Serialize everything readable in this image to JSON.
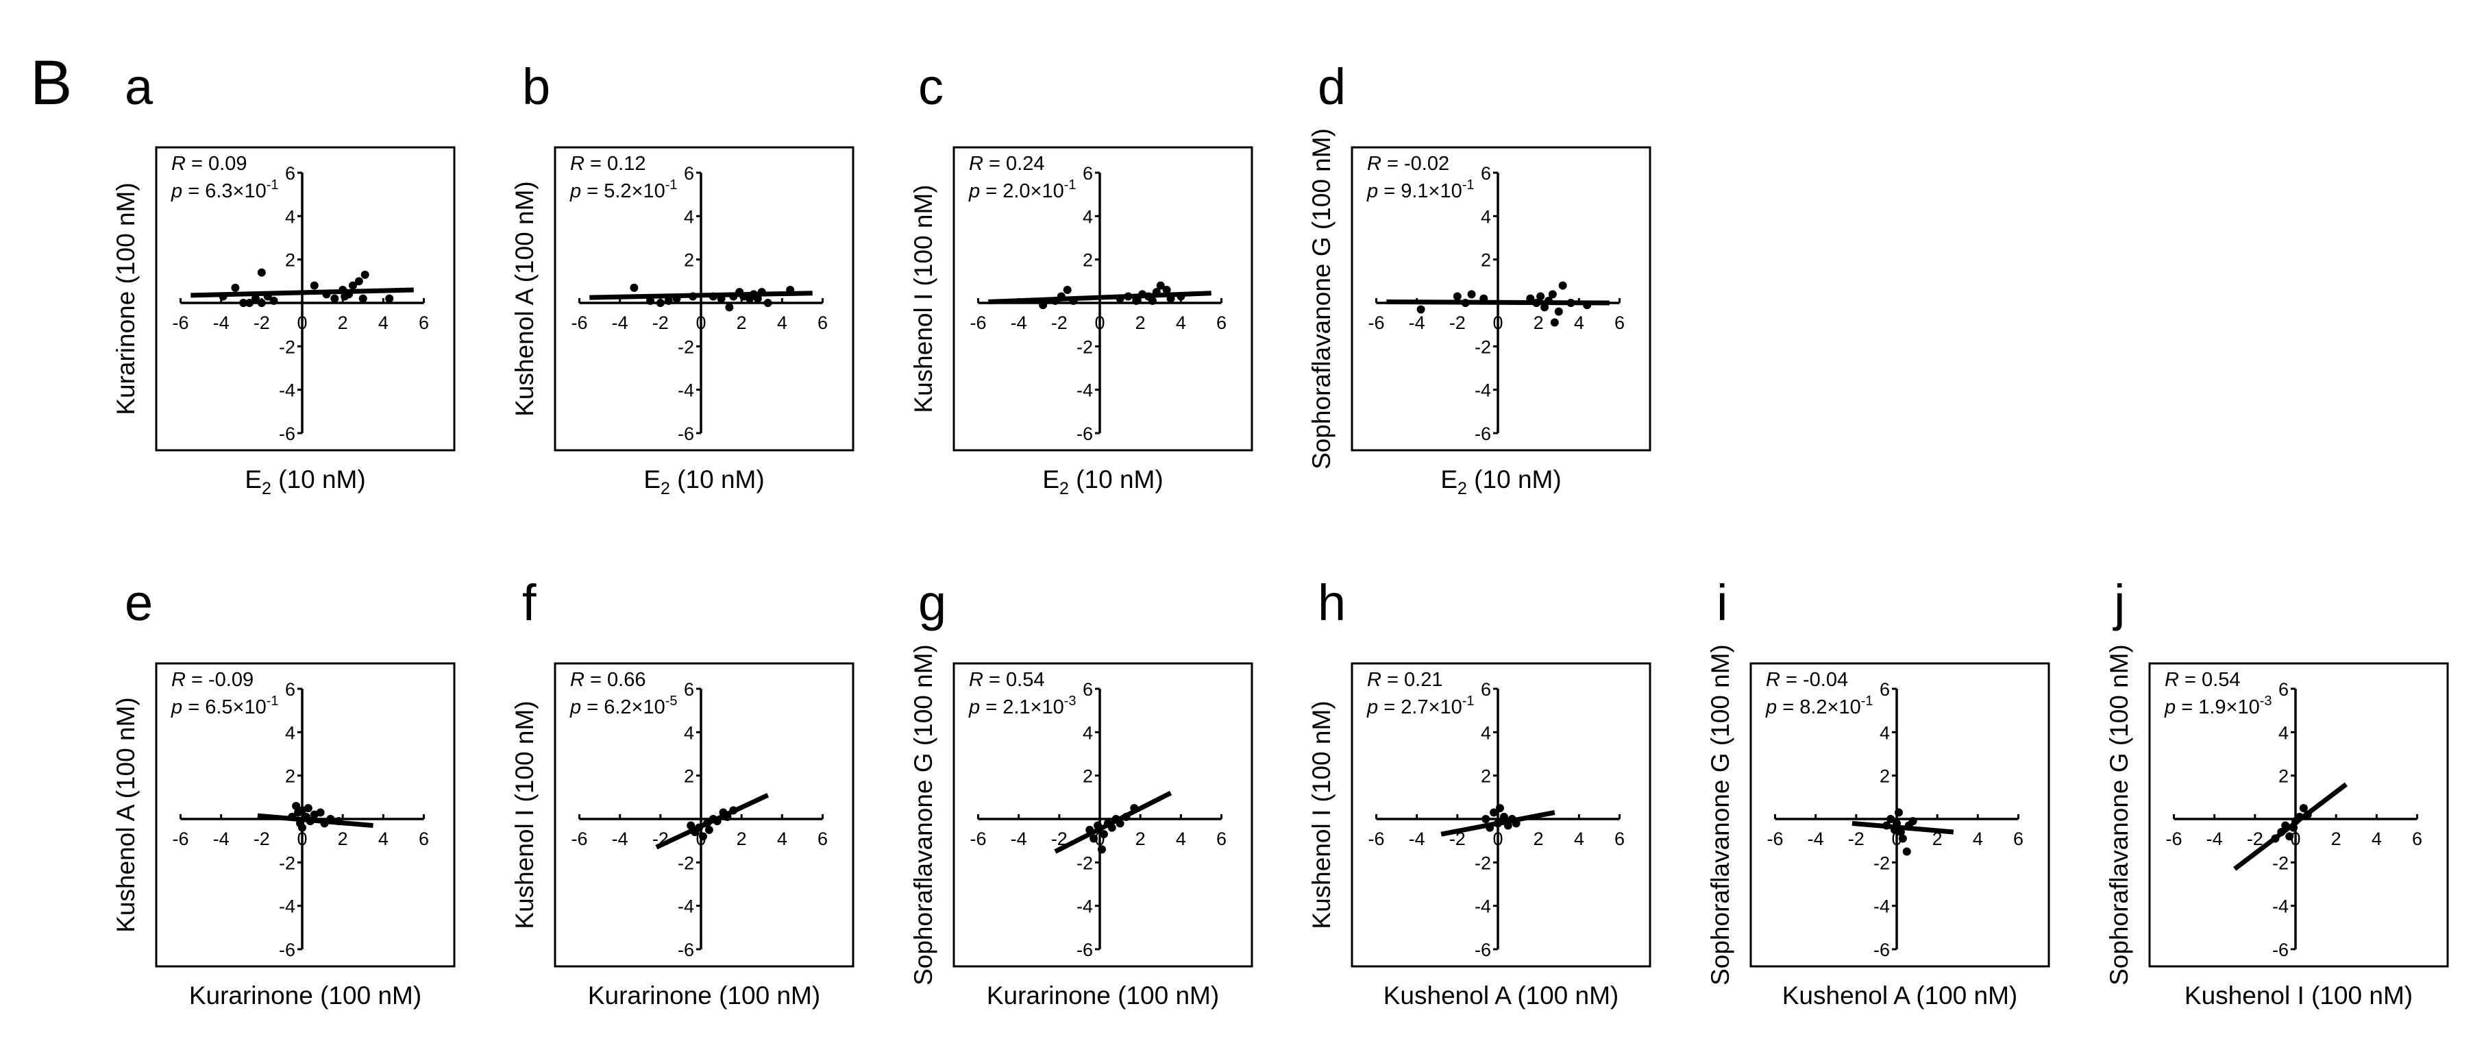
{
  "figure_label": "B",
  "tick_values": [
    -6,
    -4,
    -2,
    0,
    2,
    4,
    6
  ],
  "chart_data": [
    {
      "type": "scatter",
      "panel": "a",
      "xlabel_main": "E",
      "xlabel_sub": "2",
      "xlabel_rest": " (10 nM)",
      "ylabel": "Kurarinone (100 nM)",
      "xlim": [
        -6,
        6
      ],
      "ylim": [
        -6,
        6
      ],
      "R": "0.09",
      "p_mantissa": "6.3",
      "p_exp": "-1",
      "fit": {
        "x": [
          -5.5,
          5.5
        ],
        "y": [
          0.35,
          0.6
        ]
      },
      "points": [
        [
          -3.9,
          0.3
        ],
        [
          -3.3,
          0.7
        ],
        [
          -2.9,
          0.0
        ],
        [
          -2.6,
          0.0
        ],
        [
          -2.3,
          0.2
        ],
        [
          -2.0,
          1.4
        ],
        [
          -2.0,
          0.0
        ],
        [
          -1.7,
          0.3
        ],
        [
          -1.4,
          0.1
        ],
        [
          0.6,
          0.8
        ],
        [
          1.2,
          0.4
        ],
        [
          1.6,
          0.2
        ],
        [
          2.0,
          0.6
        ],
        [
          2.1,
          0.3
        ],
        [
          2.3,
          0.4
        ],
        [
          2.5,
          0.8
        ],
        [
          2.8,
          1.0
        ],
        [
          3.0,
          0.2
        ],
        [
          3.1,
          1.3
        ],
        [
          4.3,
          0.2
        ]
      ]
    },
    {
      "type": "scatter",
      "panel": "b",
      "xlabel_main": "E",
      "xlabel_sub": "2",
      "xlabel_rest": " (10 nM)",
      "ylabel": "Kushenol A (100 nM)",
      "xlim": [
        -6,
        6
      ],
      "ylim": [
        -6,
        6
      ],
      "R": "0.12",
      "p_mantissa": "5.2",
      "p_exp": "-1",
      "fit": {
        "x": [
          -5.5,
          5.5
        ],
        "y": [
          0.25,
          0.45
        ]
      },
      "points": [
        [
          -3.3,
          0.7
        ],
        [
          -2.5,
          0.1
        ],
        [
          -2.0,
          0.0
        ],
        [
          -1.6,
          0.1
        ],
        [
          -1.2,
          0.2
        ],
        [
          -0.4,
          0.3
        ],
        [
          0.6,
          0.3
        ],
        [
          1.0,
          0.2
        ],
        [
          1.4,
          -0.2
        ],
        [
          1.6,
          0.3
        ],
        [
          1.9,
          0.5
        ],
        [
          2.1,
          0.3
        ],
        [
          2.4,
          0.2
        ],
        [
          2.6,
          0.4
        ],
        [
          2.8,
          0.2
        ],
        [
          3.0,
          0.5
        ],
        [
          3.3,
          0.0
        ],
        [
          4.4,
          0.6
        ]
      ]
    },
    {
      "type": "scatter",
      "panel": "c",
      "xlabel_main": "E",
      "xlabel_sub": "2",
      "xlabel_rest": " (10 nM)",
      "ylabel": "Kushenol I (100 nM)",
      "xlim": [
        -6,
        6
      ],
      "ylim": [
        -6,
        6
      ],
      "R": "0.24",
      "p_mantissa": "2.0",
      "p_exp": "-1",
      "fit": {
        "x": [
          -5.5,
          5.5
        ],
        "y": [
          0.05,
          0.45
        ]
      },
      "points": [
        [
          -2.8,
          -0.1
        ],
        [
          -2.2,
          0.1
        ],
        [
          -1.9,
          0.3
        ],
        [
          -1.6,
          0.6
        ],
        [
          -1.3,
          0.1
        ],
        [
          1.0,
          0.2
        ],
        [
          1.4,
          0.3
        ],
        [
          1.8,
          0.1
        ],
        [
          2.1,
          0.4
        ],
        [
          2.4,
          0.3
        ],
        [
          2.6,
          0.1
        ],
        [
          2.8,
          0.5
        ],
        [
          3.0,
          0.8
        ],
        [
          3.3,
          0.6
        ],
        [
          3.5,
          0.2
        ],
        [
          4.0,
          0.3
        ]
      ]
    },
    {
      "type": "scatter",
      "panel": "d",
      "xlabel_main": "E",
      "xlabel_sub": "2",
      "xlabel_rest": " (10 nM)",
      "ylabel": "Sophoraflavanone G (100 nM)",
      "xlim": [
        -6,
        6
      ],
      "ylim": [
        -6,
        6
      ],
      "R": "-0.02",
      "p_mantissa": "9.1",
      "p_exp": "-1",
      "fit": {
        "x": [
          -5.5,
          5.5
        ],
        "y": [
          0.05,
          0.0
        ]
      },
      "points": [
        [
          -3.8,
          -0.3
        ],
        [
          -2.0,
          0.3
        ],
        [
          -1.6,
          0.0
        ],
        [
          -1.3,
          0.4
        ],
        [
          -0.7,
          0.2
        ],
        [
          1.6,
          0.2
        ],
        [
          1.9,
          0.0
        ],
        [
          2.1,
          0.3
        ],
        [
          2.3,
          -0.2
        ],
        [
          2.5,
          0.1
        ],
        [
          2.7,
          0.4
        ],
        [
          2.8,
          -0.9
        ],
        [
          3.0,
          -0.4
        ],
        [
          3.2,
          0.8
        ],
        [
          3.6,
          0.0
        ],
        [
          4.4,
          -0.1
        ]
      ]
    },
    {
      "type": "scatter",
      "panel": "e",
      "xlabel": "Kurarinone (100 nM)",
      "ylabel": "Kushenol A (100 nM)",
      "xlim": [
        -6,
        6
      ],
      "ylim": [
        -6,
        6
      ],
      "R": "-0.09",
      "p_mantissa": "6.5",
      "p_exp": "-1",
      "fit": {
        "x": [
          -2.2,
          3.5
        ],
        "y": [
          0.15,
          -0.3
        ]
      },
      "points": [
        [
          -0.5,
          0.1
        ],
        [
          -0.3,
          0.6
        ],
        [
          -0.2,
          0.3
        ],
        [
          -0.1,
          -0.2
        ],
        [
          0.0,
          0.4
        ],
        [
          0.0,
          -0.4
        ],
        [
          0.2,
          0.1
        ],
        [
          0.3,
          0.5
        ],
        [
          0.4,
          -0.1
        ],
        [
          0.6,
          0.2
        ],
        [
          0.9,
          0.3
        ],
        [
          1.1,
          -0.2
        ],
        [
          1.4,
          0.0
        ],
        [
          1.8,
          -0.1
        ]
      ]
    },
    {
      "type": "scatter",
      "panel": "f",
      "xlabel": "Kurarinone (100 nM)",
      "ylabel": "Kushenol I (100 nM)",
      "xlim": [
        -6,
        6
      ],
      "ylim": [
        -6,
        6
      ],
      "R": "0.66",
      "p_mantissa": "6.2",
      "p_exp": "-5",
      "fit": {
        "x": [
          -2.2,
          3.3
        ],
        "y": [
          -1.3,
          1.1
        ]
      },
      "points": [
        [
          -0.5,
          -0.3
        ],
        [
          -0.3,
          -0.6
        ],
        [
          -0.1,
          -0.4
        ],
        [
          0.1,
          -0.8
        ],
        [
          0.3,
          -0.2
        ],
        [
          0.4,
          -0.5
        ],
        [
          0.6,
          0.0
        ],
        [
          0.8,
          -0.1
        ],
        [
          1.1,
          0.3
        ],
        [
          1.3,
          0.1
        ],
        [
          1.6,
          0.4
        ]
      ]
    },
    {
      "type": "scatter",
      "panel": "g",
      "xlabel": "Kurarinone (100 nM)",
      "ylabel": "Sophoraflavanone G (100 nM)",
      "xlim": [
        -6,
        6
      ],
      "ylim": [
        -6,
        6
      ],
      "R": "0.54",
      "p_mantissa": "2.1",
      "p_exp": "-3",
      "fit": {
        "x": [
          -2.2,
          3.5
        ],
        "y": [
          -1.5,
          1.2
        ]
      },
      "points": [
        [
          -0.5,
          -0.5
        ],
        [
          -0.3,
          -0.9
        ],
        [
          -0.1,
          -0.3
        ],
        [
          0.1,
          -1.4
        ],
        [
          0.2,
          -0.7
        ],
        [
          0.4,
          -0.2
        ],
        [
          0.6,
          -0.4
        ],
        [
          0.8,
          0.0
        ],
        [
          1.0,
          -0.2
        ],
        [
          1.3,
          0.1
        ],
        [
          1.7,
          0.5
        ]
      ]
    },
    {
      "type": "scatter",
      "panel": "h",
      "xlabel": "Kushenol A (100 nM)",
      "ylabel": "Kushenol I (100 nM)",
      "xlim": [
        -6,
        6
      ],
      "ylim": [
        -6,
        6
      ],
      "R": "0.21",
      "p_mantissa": "2.7",
      "p_exp": "-1",
      "fit": {
        "x": [
          -2.8,
          2.8
        ],
        "y": [
          -0.7,
          0.3
        ]
      },
      "points": [
        [
          -0.6,
          0.0
        ],
        [
          -0.4,
          -0.4
        ],
        [
          -0.2,
          0.3
        ],
        [
          0.0,
          -0.2
        ],
        [
          0.1,
          0.5
        ],
        [
          0.2,
          -0.1
        ],
        [
          0.3,
          0.1
        ],
        [
          0.5,
          -0.3
        ],
        [
          0.7,
          0.0
        ],
        [
          0.9,
          -0.2
        ]
      ]
    },
    {
      "type": "scatter",
      "panel": "i",
      "xlabel": "Kushenol A (100 nM)",
      "ylabel": "Sophoraflavanone G (100 nM)",
      "xlim": [
        -6,
        6
      ],
      "ylim": [
        -6,
        6
      ],
      "R": "-0.04",
      "p_mantissa": "8.2",
      "p_exp": "-1",
      "fit": {
        "x": [
          -2.2,
          2.8
        ],
        "y": [
          -0.2,
          -0.6
        ]
      },
      "points": [
        [
          -0.5,
          -0.3
        ],
        [
          -0.3,
          0.0
        ],
        [
          -0.1,
          -0.5
        ],
        [
          0.0,
          -0.2
        ],
        [
          0.1,
          0.3
        ],
        [
          0.2,
          -0.6
        ],
        [
          0.3,
          -0.9
        ],
        [
          0.5,
          -1.5
        ],
        [
          0.6,
          -0.3
        ],
        [
          0.8,
          -0.1
        ]
      ]
    },
    {
      "type": "scatter",
      "panel": "j",
      "xlabel": "Kushenol I (100 nM)",
      "ylabel": "Sophoraflavanone G (100 nM)",
      "xlim": [
        -6,
        6
      ],
      "ylim": [
        -6,
        6
      ],
      "R": "0.54",
      "p_mantissa": "1.9",
      "p_exp": "-3",
      "fit": {
        "x": [
          -3.0,
          2.5
        ],
        "y": [
          -2.3,
          1.6
        ]
      },
      "points": [
        [
          -1.0,
          -0.9
        ],
        [
          -0.7,
          -0.6
        ],
        [
          -0.5,
          -0.3
        ],
        [
          -0.3,
          -0.8
        ],
        [
          -0.1,
          -0.4
        ],
        [
          0.0,
          -0.1
        ],
        [
          0.2,
          0.1
        ],
        [
          0.4,
          0.5
        ],
        [
          0.6,
          0.2
        ]
      ]
    }
  ]
}
